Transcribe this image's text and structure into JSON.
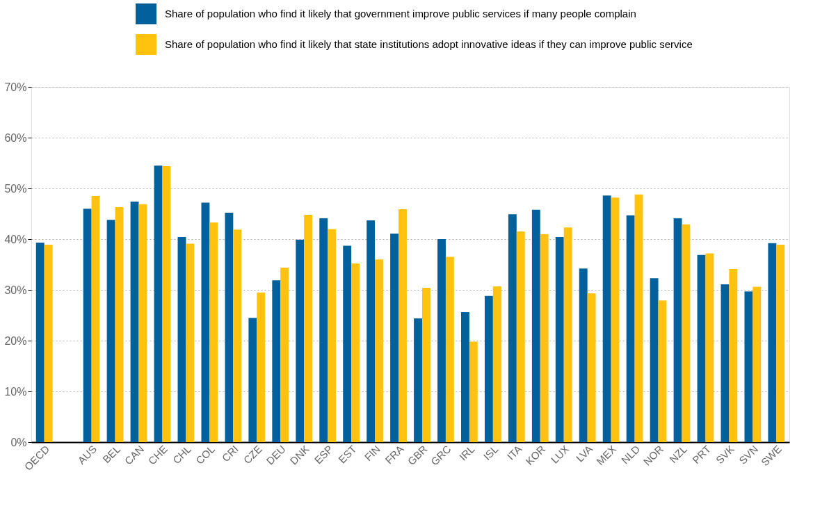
{
  "chart_data": {
    "type": "bar",
    "categories": [
      "OECD",
      null,
      "AUS",
      "BEL",
      "CAN",
      "CHE",
      "CHL",
      "COL",
      "CRI",
      "CZE",
      "DEU",
      "DNK",
      "ESP",
      "EST",
      "FIN",
      "FRA",
      "GBR",
      "GRC",
      "IRL",
      "ISL",
      "ITA",
      "KOR",
      "LUX",
      "LVA",
      "MEX",
      "NLD",
      "NOR",
      "NZL",
      "PRT",
      "SVK",
      "SVN",
      "SWE"
    ],
    "series": [
      {
        "name": "Share of population who find it likely that government improve public services if many people complain",
        "color": "#02619c",
        "values": [
          39.3,
          null,
          46.0,
          43.8,
          47.4,
          54.5,
          40.4,
          47.2,
          45.2,
          24.5,
          31.9,
          39.9,
          44.1,
          38.7,
          43.7,
          41.1,
          24.4,
          40.0,
          25.6,
          28.8,
          44.9,
          45.8,
          40.4,
          34.2,
          48.6,
          44.7,
          32.3,
          44.1,
          36.9,
          31.1,
          29.7,
          39.2
        ]
      },
      {
        "name": "Share of population who find it likely that state institutions adopt innovative ideas if they can improve public service",
        "color": "#ffc20e",
        "values": [
          38.9,
          null,
          48.5,
          46.3,
          46.9,
          54.4,
          39.1,
          43.3,
          41.9,
          29.5,
          34.4,
          44.8,
          42.0,
          35.2,
          36.0,
          45.9,
          30.4,
          36.5,
          19.8,
          30.7,
          41.5,
          41.0,
          42.3,
          29.3,
          48.2,
          48.8,
          27.9,
          42.9,
          37.2,
          34.1,
          30.6,
          38.9
        ]
      }
    ],
    "ylim": [
      0,
      70
    ],
    "yticks": [
      {
        "value": 0,
        "label": "0%"
      },
      {
        "value": 10,
        "label": "10%"
      },
      {
        "value": 20,
        "label": "20%"
      },
      {
        "value": 30,
        "label": "30%"
      },
      {
        "value": 40,
        "label": "40%"
      },
      {
        "value": 50,
        "label": "50%"
      },
      {
        "value": 60,
        "label": "60%"
      },
      {
        "value": 70,
        "label": "70%"
      }
    ],
    "grid": "y",
    "legend": "top"
  }
}
